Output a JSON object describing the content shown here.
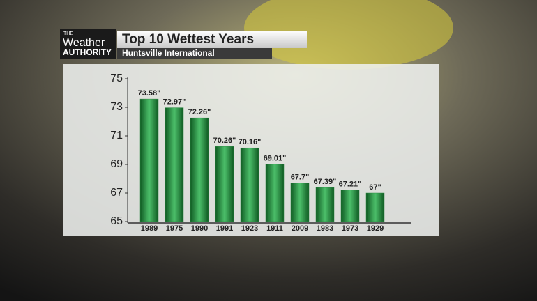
{
  "logo": {
    "top": "THE",
    "middle": "Weather",
    "bottom": "AUTHORITY"
  },
  "chart_data": {
    "type": "bar",
    "title": "Top 10 Wettest Years",
    "subtitle": "Huntsville International",
    "categories": [
      "1989",
      "1975",
      "1990",
      "1991",
      "1923",
      "1911",
      "2009",
      "1983",
      "1973",
      "1929"
    ],
    "values": [
      73.58,
      72.97,
      72.26,
      70.26,
      70.16,
      69.01,
      67.7,
      67.39,
      67.21,
      67
    ],
    "value_labels": [
      "73.58\"",
      "72.97\"",
      "72.26\"",
      "70.26\"",
      "70.16\"",
      "69.01\"",
      "67.7\"",
      "67.39\"",
      "67.21\"",
      "67\""
    ],
    "color": "#2e8b45",
    "ylim": [
      65,
      75
    ],
    "yticks": [
      65,
      67,
      69,
      71,
      73,
      75
    ]
  }
}
